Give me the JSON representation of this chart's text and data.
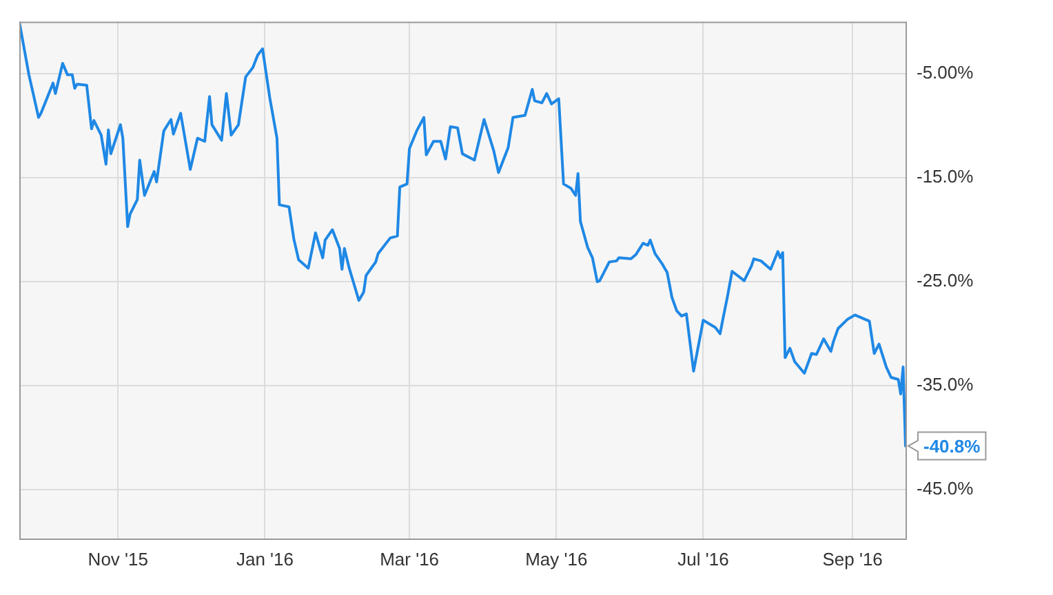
{
  "chart_data": {
    "type": "line",
    "color": "#1f88e5",
    "marker": "none",
    "grid": true,
    "xlim": [
      "2015-09-21",
      "2016-09-23"
    ],
    "xticks": [
      {
        "value": "2015-11-01",
        "label": "Nov '15"
      },
      {
        "value": "2016-01-01",
        "label": "Jan '16"
      },
      {
        "value": "2016-03-01",
        "label": "Mar '16"
      },
      {
        "value": "2016-05-01",
        "label": "May '16"
      },
      {
        "value": "2016-07-01",
        "label": "Jul '16"
      },
      {
        "value": "2016-09-01",
        "label": "Sep '16"
      }
    ],
    "ylim": [
      -49.7,
      0
    ],
    "yticks": [
      {
        "value": -5,
        "label": "-5.00%"
      },
      {
        "value": -15,
        "label": "-15.0%"
      },
      {
        "value": -25,
        "label": "-25.0%"
      },
      {
        "value": -35,
        "label": "-35.0%"
      },
      {
        "value": -45,
        "label": "-45.0%"
      }
    ],
    "x": [
      "2015-09-21",
      "2015-09-25",
      "2015-09-29",
      "2015-09-30",
      "2015-10-05",
      "2015-10-06",
      "2015-10-09",
      "2015-10-11",
      "2015-10-13",
      "2015-10-14",
      "2015-10-15",
      "2015-10-19",
      "2015-10-21",
      "2015-10-22",
      "2015-10-25",
      "2015-10-27",
      "2015-10-28",
      "2015-10-29",
      "2015-11-02",
      "2015-11-03",
      "2015-11-05",
      "2015-11-06",
      "2015-11-09",
      "2015-11-10",
      "2015-11-12",
      "2015-11-16",
      "2015-11-17",
      "2015-11-20",
      "2015-11-23",
      "2015-11-24",
      "2015-11-27",
      "2015-12-01",
      "2015-12-04",
      "2015-12-07",
      "2015-12-09",
      "2015-12-10",
      "2015-12-14",
      "2015-12-16",
      "2015-12-18",
      "2015-12-21",
      "2015-12-24",
      "2015-12-27",
      "2015-12-29",
      "2015-12-31",
      "2016-01-03",
      "2016-01-06",
      "2016-01-07",
      "2016-01-11",
      "2016-01-13",
      "2016-01-15",
      "2016-01-19",
      "2016-01-22",
      "2016-01-25",
      "2016-01-26",
      "2016-01-29",
      "2016-02-01",
      "2016-02-02",
      "2016-02-03",
      "2016-02-05",
      "2016-02-09",
      "2016-02-11",
      "2016-02-12",
      "2016-02-16",
      "2016-02-17",
      "2016-02-22",
      "2016-02-25",
      "2016-02-26",
      "2016-02-29",
      "2016-03-01",
      "2016-03-04",
      "2016-03-07",
      "2016-03-08",
      "2016-03-11",
      "2016-03-14",
      "2016-03-16",
      "2016-03-18",
      "2016-03-21",
      "2016-03-23",
      "2016-03-28",
      "2016-04-01",
      "2016-04-05",
      "2016-04-07",
      "2016-04-11",
      "2016-04-13",
      "2016-04-18",
      "2016-04-21",
      "2016-04-22",
      "2016-04-25",
      "2016-04-27",
      "2016-04-29",
      "2016-05-02",
      "2016-05-04",
      "2016-05-07",
      "2016-05-09",
      "2016-05-10",
      "2016-05-11",
      "2016-05-14",
      "2016-05-16",
      "2016-05-18",
      "2016-05-19",
      "2016-05-23",
      "2016-05-26",
      "2016-05-27",
      "2016-06-01",
      "2016-06-03",
      "2016-06-06",
      "2016-06-08",
      "2016-06-09",
      "2016-06-11",
      "2016-06-14",
      "2016-06-16",
      "2016-06-18",
      "2016-06-20",
      "2016-06-22",
      "2016-06-24",
      "2016-06-27",
      "2016-07-01",
      "2016-07-06",
      "2016-07-08",
      "2016-07-09",
      "2016-07-11",
      "2016-07-13",
      "2016-07-18",
      "2016-07-21",
      "2016-07-22",
      "2016-07-25",
      "2016-07-29",
      "2016-08-01",
      "2016-08-02",
      "2016-08-03",
      "2016-08-04",
      "2016-08-06",
      "2016-08-08",
      "2016-08-12",
      "2016-08-15",
      "2016-08-17",
      "2016-08-20",
      "2016-08-23",
      "2016-08-24",
      "2016-08-26",
      "2016-08-30",
      "2016-09-02",
      "2016-09-04",
      "2016-09-08",
      "2016-09-10",
      "2016-09-12",
      "2016-09-15",
      "2016-09-17",
      "2016-09-20",
      "2016-09-21",
      "2016-09-22",
      "2016-09-23"
    ],
    "values": [
      0,
      -5.1,
      -9.2,
      -8.8,
      -5.9,
      -6.9,
      -4.0,
      -5.1,
      -5.1,
      -6.4,
      -6.0,
      -6.1,
      -10.3,
      -9.5,
      -10.9,
      -13.7,
      -10.4,
      -12.7,
      -9.9,
      -11.2,
      -19.7,
      -18.5,
      -17.1,
      -13.3,
      -16.7,
      -14.4,
      -15.4,
      -10.5,
      -9.4,
      -10.8,
      -8.8,
      -14.2,
      -11.2,
      -11.5,
      -7.2,
      -9.9,
      -11.4,
      -6.9,
      -10.9,
      -9.9,
      -5.3,
      -4.4,
      -3.2,
      -2.6,
      -7.3,
      -11.2,
      -17.6,
      -17.8,
      -20.9,
      -22.9,
      -23.7,
      -20.3,
      -22.7,
      -21.0,
      -20.0,
      -21.8,
      -23.8,
      -21.8,
      -23.7,
      -26.8,
      -26.0,
      -24.4,
      -23.1,
      -22.3,
      -20.8,
      -20.6,
      -15.9,
      -15.6,
      -12.2,
      -10.5,
      -9.2,
      -12.8,
      -11.5,
      -11.5,
      -13.2,
      -10.1,
      -10.2,
      -12.7,
      -13.3,
      -9.4,
      -12.4,
      -14.5,
      -12.1,
      -9.2,
      -9.0,
      -6.5,
      -7.6,
      -7.8,
      -6.9,
      -7.9,
      -7.4,
      -15.6,
      -16.0,
      -16.7,
      -14.6,
      -19.2,
      -21.7,
      -22.7,
      -25.0,
      -24.9,
      -23.1,
      -23.0,
      -22.7,
      -22.8,
      -22.4,
      -21.3,
      -21.5,
      -21.0,
      -22.3,
      -23.3,
      -24.1,
      -26.5,
      -27.8,
      -28.3,
      -28.1,
      -33.6,
      -28.7,
      -29.4,
      -30.0,
      -28.8,
      -26.5,
      -24.0,
      -24.9,
      -23.5,
      -22.8,
      -23.0,
      -23.8,
      -22.1,
      -22.7,
      -22.2,
      -32.3,
      -31.4,
      -32.7,
      -33.8,
      -31.9,
      -32.0,
      -30.5,
      -31.7,
      -30.8,
      -29.5,
      -28.6,
      -28.2,
      -28.4,
      -28.8,
      -31.9,
      -31.0,
      -33.2,
      -34.2,
      -34.4,
      -35.8,
      -33.2,
      -40.8
    ],
    "annotations": [
      {
        "text": "-40.8%",
        "x": "2016-09-23",
        "y": -40.8
      }
    ]
  }
}
